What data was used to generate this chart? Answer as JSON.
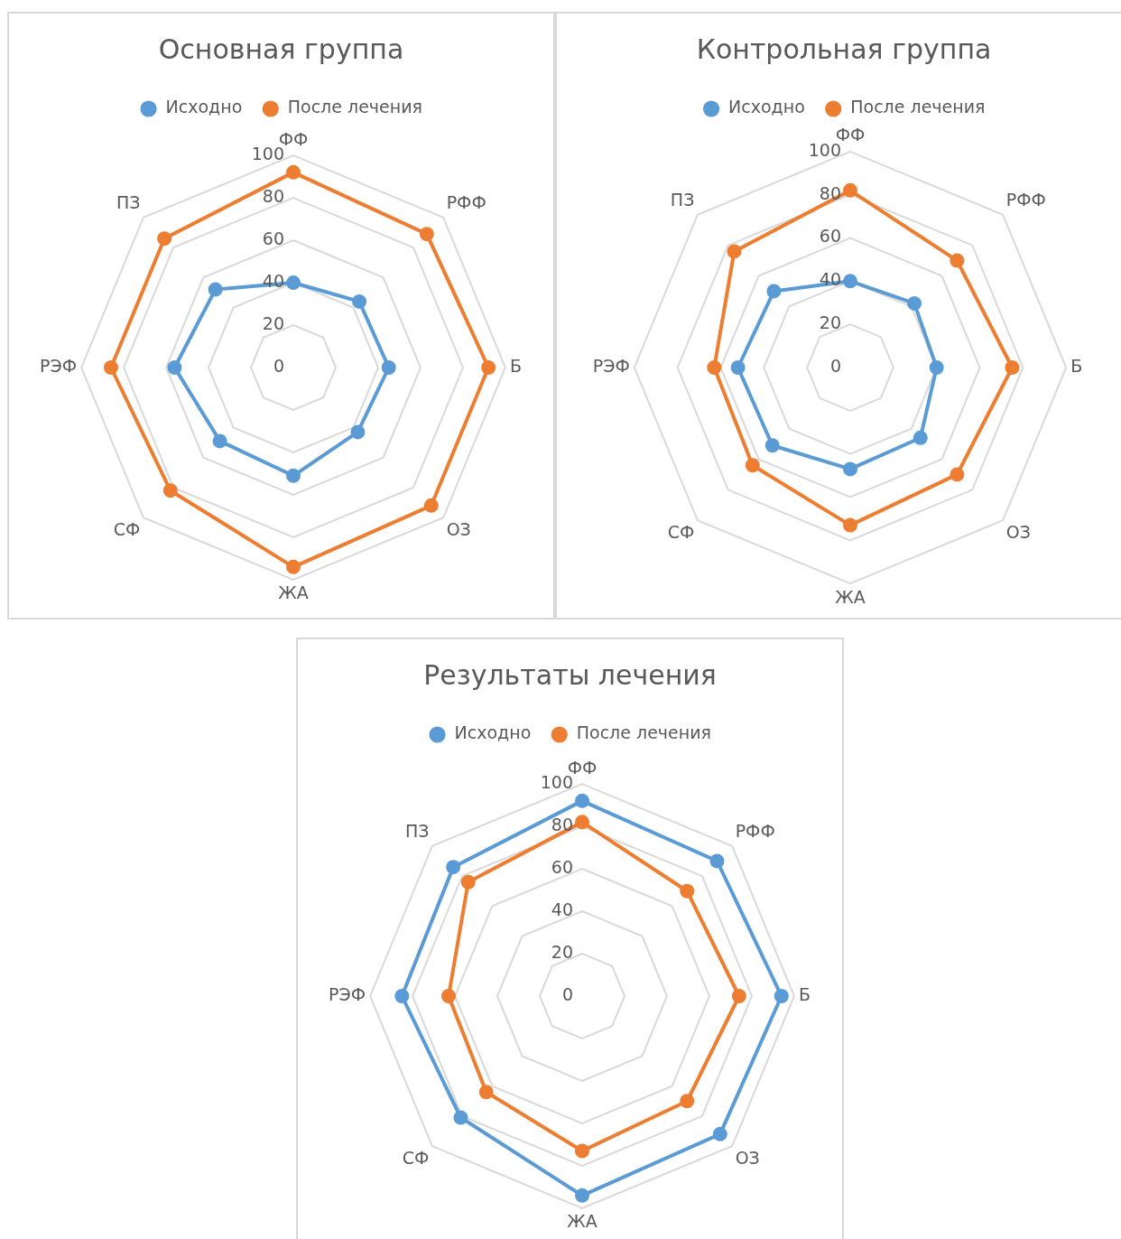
{
  "chart_data": [
    {
      "type": "radar",
      "title": "Основная группа",
      "categories": [
        "ФФ",
        "РФФ",
        "Б",
        "ОЗ",
        "ЖА",
        "СФ",
        "РЭФ",
        "ПЗ"
      ],
      "ylim": [
        0,
        100
      ],
      "yticks": [
        0,
        20,
        40,
        60,
        80,
        100
      ],
      "grid": true,
      "legend": "top",
      "marker": "circle",
      "series": [
        {
          "name": "Исходно",
          "color": "#5b9bd5",
          "values": [
            40,
            44,
            45,
            43,
            51,
            49,
            56,
            52
          ]
        },
        {
          "name": "После лечения",
          "color": "#ed7d31",
          "values": [
            92,
            89,
            92,
            92,
            94,
            82,
            86,
            86
          ]
        }
      ]
    },
    {
      "type": "radar",
      "title": "Контрольная группа",
      "categories": [
        "ФФ",
        "РФФ",
        "Б",
        "ОЗ",
        "ЖА",
        "СФ",
        "РЭФ",
        "ПЗ"
      ],
      "ylim": [
        0,
        100
      ],
      "yticks": [
        0,
        20,
        40,
        60,
        80,
        100
      ],
      "grid": true,
      "legend": "top",
      "marker": "circle",
      "series": [
        {
          "name": "Исходно",
          "color": "#5b9bd5",
          "values": [
            40,
            42,
            40,
            46,
            47,
            51,
            52,
            50
          ]
        },
        {
          "name": "После лечения",
          "color": "#ed7d31",
          "values": [
            82,
            70,
            75,
            70,
            73,
            64,
            63,
            76
          ]
        }
      ]
    },
    {
      "type": "radar",
      "title": "Результаты лечения",
      "categories": [
        "ФФ",
        "РФФ",
        "Б",
        "ОЗ",
        "ЖА",
        "СФ",
        "РЭФ",
        "ПЗ"
      ],
      "ylim": [
        0,
        100
      ],
      "yticks": [
        0,
        20,
        40,
        60,
        80,
        100
      ],
      "grid": true,
      "legend": "top",
      "marker": "circle",
      "series": [
        {
          "name": "Исходно",
          "color": "#5b9bd5",
          "values": [
            92,
            90,
            94,
            92,
            94,
            81,
            85,
            86
          ]
        },
        {
          "name": "После лечения",
          "color": "#ed7d31",
          "values": [
            82,
            70,
            74,
            70,
            73,
            64,
            63,
            76
          ]
        }
      ]
    }
  ]
}
